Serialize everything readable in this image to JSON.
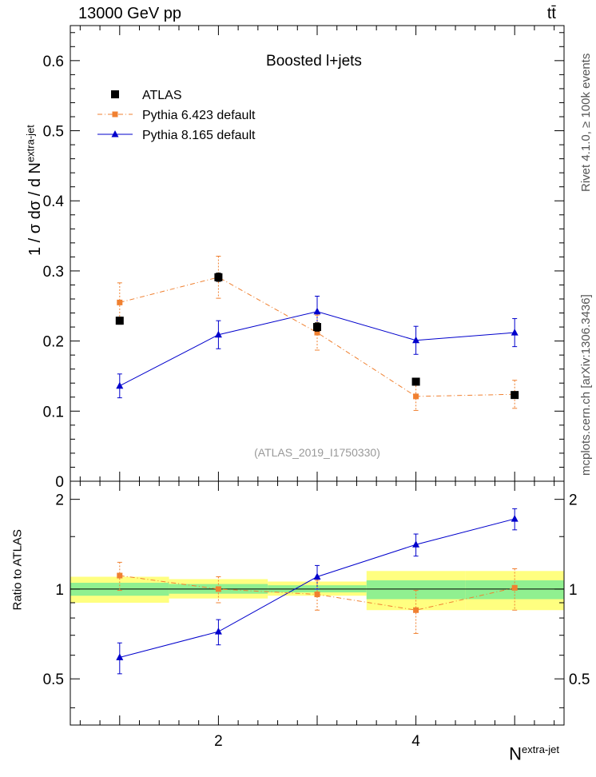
{
  "header": {
    "left": "13000 GeV pp",
    "right": "tt̄"
  },
  "side_labels": {
    "rivet": "Rivet 4.1.0, ≥ 100k events",
    "mcplots": "mcplots.cern.ch [arXiv:1306.3436]"
  },
  "chart_data": [
    {
      "type": "scatter",
      "title": "Boosted l+jets",
      "watermark": "(ATLAS_2019_I1750330)",
      "ylabel": "1 / σ dσ / d N{extra-jet}",
      "xlim": [
        0.5,
        5.5
      ],
      "ylim": [
        0,
        0.65
      ],
      "yticks": [
        "0",
        "0.1",
        "0.2",
        "0.3",
        "0.4",
        "0.5",
        "0.6"
      ],
      "ytick_values": [
        0,
        0.1,
        0.2,
        0.3,
        0.4,
        0.5,
        0.6
      ],
      "x": [
        1,
        2,
        3,
        4,
        5
      ],
      "series": [
        {
          "name": "ATLAS",
          "marker": "square",
          "color": "#000000",
          "values": [
            0.229,
            0.291,
            0.22,
            0.142,
            0.123
          ],
          "errors": [
            0.005,
            0.006,
            0.006,
            0.004,
            0.004
          ]
        },
        {
          "name": "Pythia 6.423 default",
          "marker": "square-small",
          "color": "#f08030",
          "style": "dashdot",
          "values": [
            0.255,
            0.291,
            0.212,
            0.121,
            0.124
          ],
          "errors": [
            0.028,
            0.03,
            0.025,
            0.02,
            0.02
          ]
        },
        {
          "name": "Pythia 8.165 default",
          "marker": "triangle",
          "color": "#0000cc",
          "style": "solid",
          "values": [
            0.136,
            0.209,
            0.242,
            0.201,
            0.212
          ],
          "errors": [
            0.017,
            0.02,
            0.022,
            0.02,
            0.02
          ]
        }
      ],
      "legend": [
        "ATLAS",
        "Pythia 6.423 default",
        "Pythia 8.165 default"
      ],
      "legend_position": "top-left"
    },
    {
      "type": "scatter",
      "ylabel": "Ratio to ATLAS",
      "xlabel": "N{extra-jet}",
      "xlim": [
        0.5,
        5.5
      ],
      "ylim": [
        0.35,
        2.3
      ],
      "yticks": [
        "0.5",
        "1",
        "2"
      ],
      "ytick_values": [
        0.5,
        1,
        2
      ],
      "xticks": [
        "2",
        "4"
      ],
      "xtick_values": [
        2,
        4
      ],
      "x": [
        1,
        2,
        3,
        4,
        5
      ],
      "bands": {
        "bins": [
          [
            0.5,
            1.5
          ],
          [
            1.5,
            2.5
          ],
          [
            2.5,
            3.5
          ],
          [
            3.5,
            4.5
          ],
          [
            4.5,
            5.5
          ]
        ],
        "green": [
          [
            0.95,
            1.05
          ],
          [
            0.965,
            1.04
          ],
          [
            0.975,
            1.03
          ],
          [
            0.925,
            1.07
          ],
          [
            0.925,
            1.07
          ]
        ],
        "yellow": [
          [
            0.9,
            1.1
          ],
          [
            0.93,
            1.08
          ],
          [
            0.95,
            1.06
          ],
          [
            0.85,
            1.15
          ],
          [
            0.85,
            1.15
          ]
        ]
      },
      "series": [
        {
          "name": "Pythia 6.423 default",
          "color": "#f08030",
          "style": "dashdot",
          "marker": "square-small",
          "values": [
            1.11,
            1.0,
            0.96,
            0.85,
            1.01
          ],
          "errors": [
            0.12,
            0.1,
            0.11,
            0.14,
            0.16
          ]
        },
        {
          "name": "Pythia 8.165 default",
          "color": "#0000cc",
          "style": "solid",
          "marker": "triangle",
          "values": [
            0.59,
            0.72,
            1.1,
            1.41,
            1.72
          ],
          "errors": [
            0.07,
            0.07,
            0.1,
            0.12,
            0.14
          ]
        }
      ]
    }
  ]
}
